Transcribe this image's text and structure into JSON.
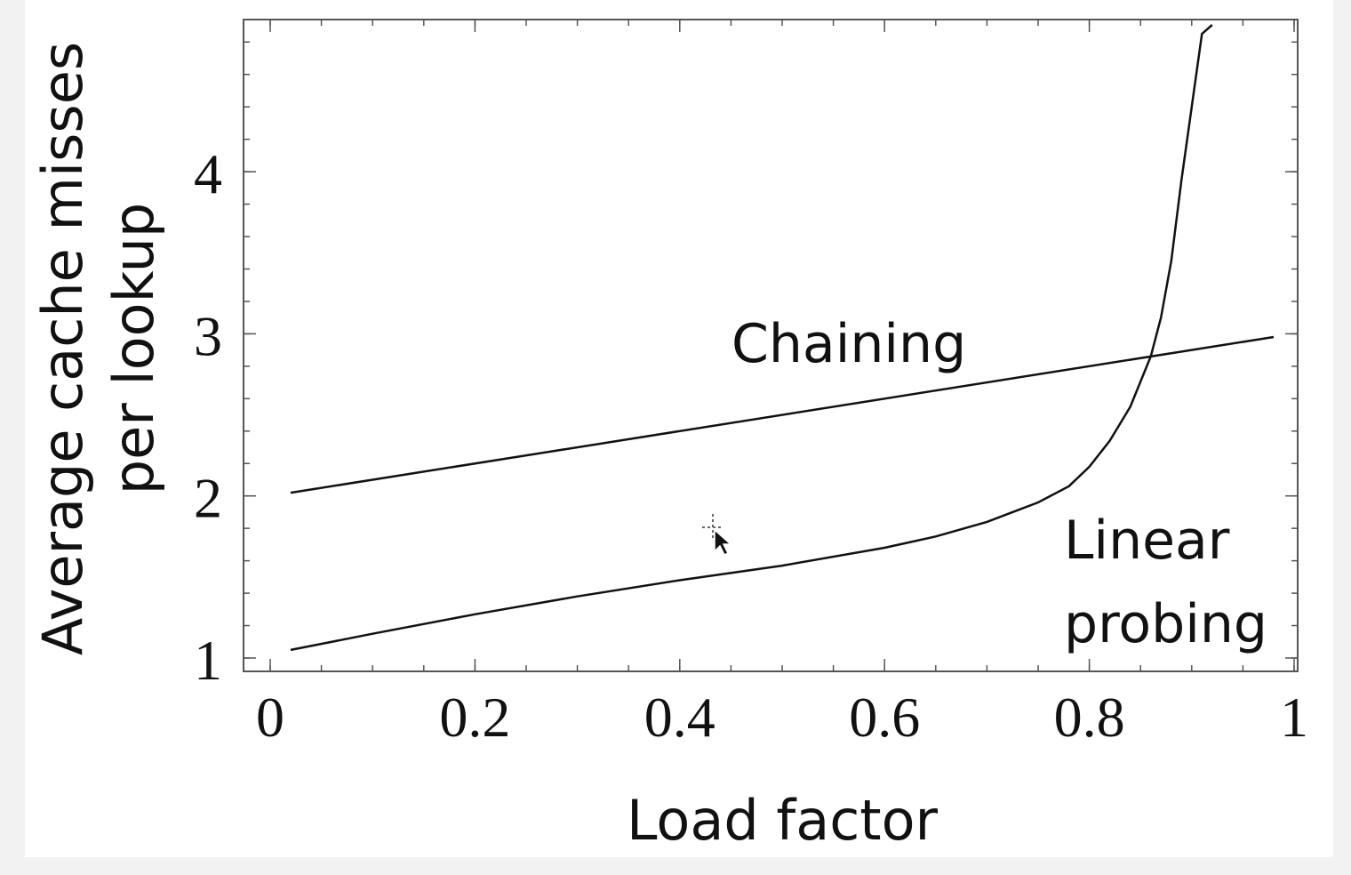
{
  "chart_data": {
    "type": "line",
    "title": "",
    "xlabel": "Load factor",
    "ylabel_lines": [
      "Average cache misses",
      "per lookup"
    ],
    "xlim": [
      0,
      1
    ],
    "ylim": [
      1,
      5
    ],
    "x_ticks": [
      "0",
      "0.2",
      "0.4",
      "0.6",
      "0.8",
      "1"
    ],
    "y_ticks": [
      "1",
      "2",
      "3",
      "4"
    ],
    "grid": false,
    "series": [
      {
        "name": "Chaining",
        "x": [
          0.02,
          0.98
        ],
        "y": [
          2.02,
          2.98
        ]
      },
      {
        "name": "Linear probing",
        "x": [
          0.02,
          0.1,
          0.2,
          0.3,
          0.4,
          0.5,
          0.6,
          0.65,
          0.7,
          0.75,
          0.78,
          0.8,
          0.82,
          0.84,
          0.86,
          0.87,
          0.88,
          0.89,
          0.9,
          0.91,
          0.92
        ],
        "y": [
          1.05,
          1.15,
          1.27,
          1.38,
          1.48,
          1.57,
          1.68,
          1.75,
          1.84,
          1.96,
          2.06,
          2.18,
          2.34,
          2.55,
          2.86,
          3.1,
          3.45,
          3.95,
          4.4,
          4.85,
          5.0
        ]
      }
    ],
    "series_labels": {
      "chaining": "Chaining",
      "linear_line1": "Linear",
      "linear_line2": "probing"
    }
  }
}
